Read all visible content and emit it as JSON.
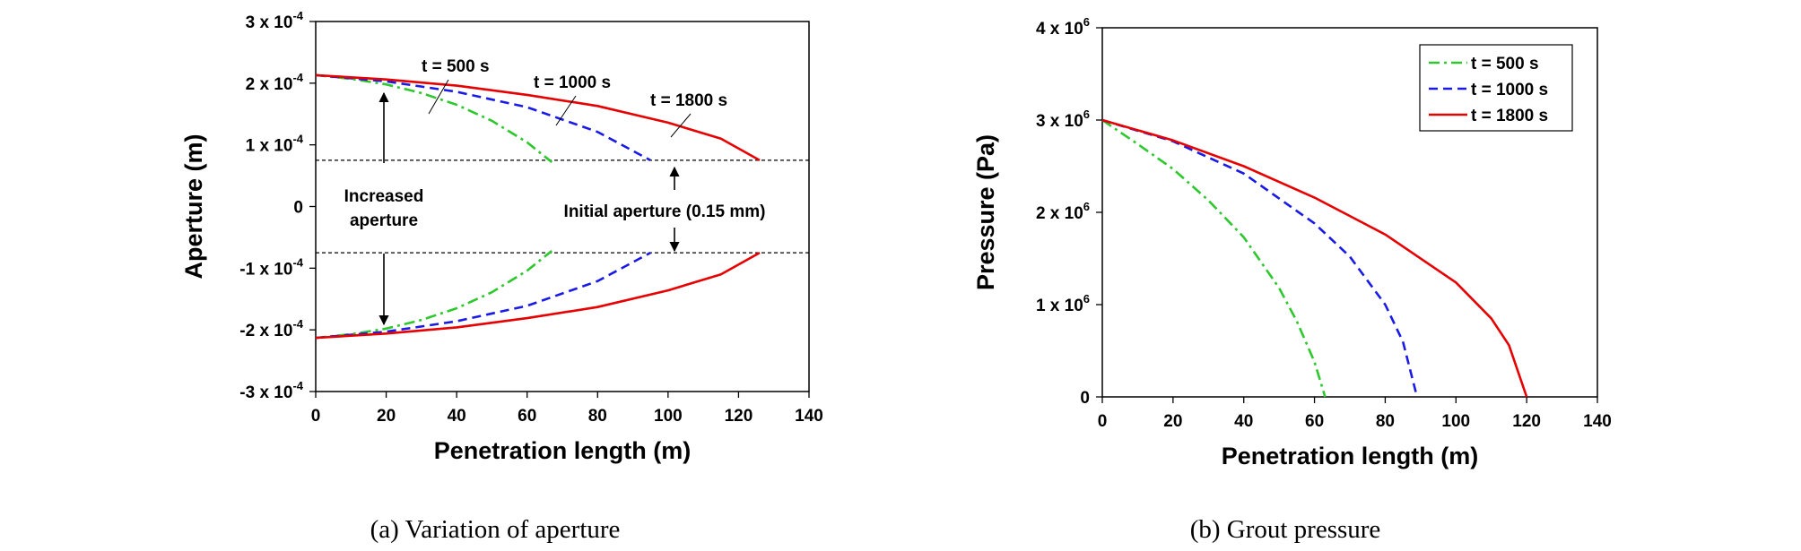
{
  "chart_data": [
    {
      "type": "line",
      "caption": "(a)  Variation  of  aperture",
      "xlabel": "Penetration length (m)",
      "ylabel": "Aperture (m)",
      "xlim": [
        0,
        140
      ],
      "ylim": [
        -0.0003,
        0.0003
      ],
      "x_ticks": [
        "0",
        "20",
        "40",
        "60",
        "80",
        "100",
        "120",
        "140"
      ],
      "y_ticks": [
        {
          "value": 0.0003,
          "base": "3 x 10",
          "exp": "-4"
        },
        {
          "value": 0.0002,
          "base": "2 x 10",
          "exp": "-4"
        },
        {
          "value": 0.0001,
          "base": "1 x 10",
          "exp": "-4"
        },
        {
          "value": 0,
          "base": "0",
          "exp": ""
        },
        {
          "value": -0.0001,
          "base": "-1 x 10",
          "exp": "-4"
        },
        {
          "value": -0.0002,
          "base": "-2 x 10",
          "exp": "-4"
        },
        {
          "value": -0.0003,
          "base": "-3 x 10",
          "exp": "-4"
        }
      ],
      "grid": false,
      "reference_lines": [
        7.5e-05,
        -7.5e-05
      ],
      "series": [
        {
          "name": "t = 500 s",
          "style": "dashdot",
          "color": "#2dc82d",
          "mirrored": true,
          "x": [
            0,
            10,
            20,
            30,
            40,
            50,
            60,
            67
          ],
          "y": [
            0.000213,
            0.000207,
            0.000198,
            0.000184,
            0.000165,
            0.000139,
            0.000104,
            7.2e-05
          ]
        },
        {
          "name": "t = 1000 s",
          "style": "dashed",
          "color": "#1a1ae6",
          "mirrored": true,
          "x": [
            0,
            20,
            40,
            60,
            80,
            95
          ],
          "y": [
            0.000213,
            0.000203,
            0.000186,
            0.000161,
            0.000121,
            7.5e-05
          ]
        },
        {
          "name": "t = 1800 s",
          "style": "solid",
          "color": "#e60000",
          "mirrored": true,
          "x": [
            0,
            20,
            40,
            60,
            80,
            100,
            115,
            126
          ],
          "y": [
            0.000213,
            0.000206,
            0.000196,
            0.000181,
            0.000163,
            0.000136,
            0.00011,
            7.5e-05
          ]
        }
      ],
      "annotations": [
        {
          "text": "t = 500 s"
        },
        {
          "text": "t = 1000 s"
        },
        {
          "text": "t = 1800 s"
        },
        {
          "text_lines": [
            "Increased",
            "aperture"
          ]
        },
        {
          "text": "Initial aperture (0.15 mm)"
        }
      ]
    },
    {
      "type": "line",
      "caption": "(b)  Grout  pressure",
      "xlabel": "Penetration length (m)",
      "ylabel": "Pressure (Pa)",
      "xlim": [
        0,
        140
      ],
      "ylim": [
        0,
        4000000
      ],
      "x_ticks": [
        "0",
        "20",
        "40",
        "60",
        "80",
        "100",
        "120",
        "140"
      ],
      "y_ticks": [
        {
          "value": 4000000,
          "base": "4 x 10",
          "exp": "6"
        },
        {
          "value": 3000000,
          "base": "3 x 10",
          "exp": "6"
        },
        {
          "value": 2000000,
          "base": "2 x 10",
          "exp": "6"
        },
        {
          "value": 1000000,
          "base": "1 x 10",
          "exp": "6"
        },
        {
          "value": 0,
          "base": "0",
          "exp": ""
        }
      ],
      "grid": false,
      "legend": "top-right",
      "series": [
        {
          "name": "t = 500 s",
          "style": "dashdot",
          "color": "#2dc82d",
          "x": [
            0,
            10,
            20,
            30,
            40,
            50,
            55,
            60,
            63
          ],
          "y": [
            3000000,
            2740000,
            2470000,
            2130000,
            1730000,
            1180000,
            820000,
            380000,
            0
          ]
        },
        {
          "name": "t = 1000 s",
          "style": "dashed",
          "color": "#1a1ae6",
          "x": [
            0,
            20,
            40,
            60,
            70,
            80,
            85,
            89
          ],
          "y": [
            3000000,
            2770000,
            2420000,
            1880000,
            1520000,
            1000000,
            600000,
            0
          ]
        },
        {
          "name": "t = 1800 s",
          "style": "solid",
          "color": "#e60000",
          "x": [
            0,
            20,
            40,
            60,
            80,
            100,
            110,
            115,
            120
          ],
          "y": [
            3000000,
            2780000,
            2500000,
            2160000,
            1760000,
            1240000,
            850000,
            560000,
            0
          ]
        }
      ]
    }
  ]
}
